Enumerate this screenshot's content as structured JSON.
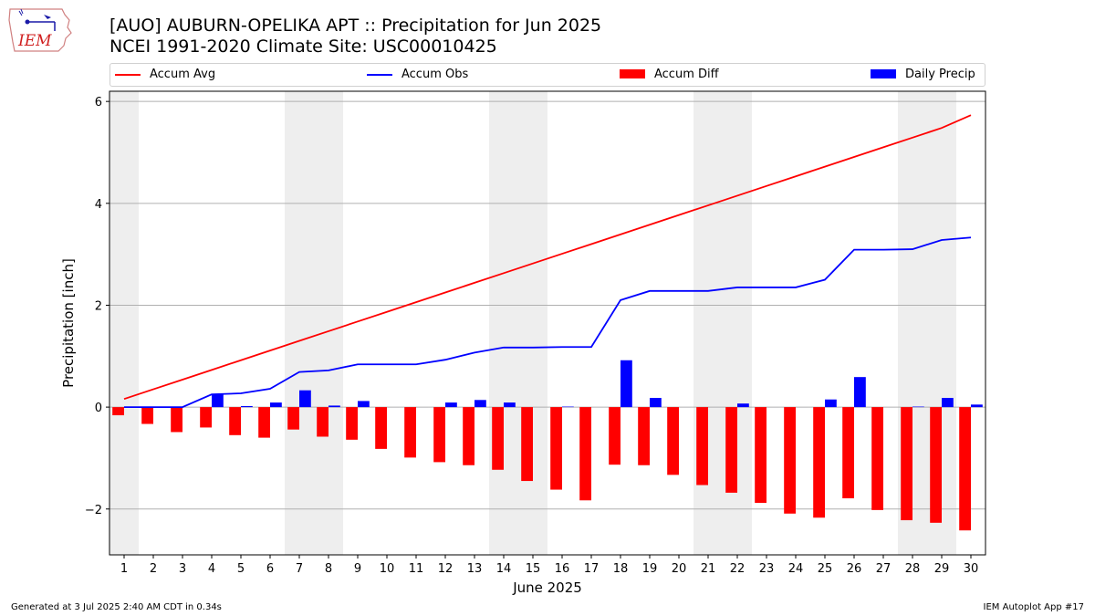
{
  "header": {
    "title": "[AUO] AUBURN-OPELIKA APT :: Precipitation for Jun 2025",
    "subtitle": "NCEI 1991-2020 Climate Site: USC00010425",
    "logo_text": "IEM"
  },
  "legend": {
    "items": [
      {
        "label": "Accum Avg",
        "color": "#ff0000",
        "kind": "line"
      },
      {
        "label": "Accum Obs",
        "color": "#0000ff",
        "kind": "line"
      },
      {
        "label": "Accum Diff",
        "color": "#ff0000",
        "kind": "box"
      },
      {
        "label": "Daily Precip",
        "color": "#0000ff",
        "kind": "box"
      }
    ]
  },
  "footer": {
    "left": "Generated at 3 Jul 2025 2:40 AM CDT in 0.34s",
    "right": "IEM Autoplot App #17"
  },
  "chart_data": {
    "type": "bar",
    "xlabel": "June 2025",
    "ylabel": "Precipitation [inch]",
    "xlim": [
      0.5,
      30.5
    ],
    "ylim": [
      -2.9,
      6.2
    ],
    "yticks": [
      -2,
      0,
      2,
      4,
      6
    ],
    "grid": "y",
    "legend_position": "top",
    "weekend_shading": [
      [
        0.5,
        1.5
      ],
      [
        6.5,
        8.5
      ],
      [
        13.5,
        15.5
      ],
      [
        20.5,
        22.5
      ],
      [
        27.5,
        29.5
      ]
    ],
    "categories": [
      "1",
      "2",
      "3",
      "4",
      "5",
      "6",
      "7",
      "8",
      "9",
      "10",
      "11",
      "12",
      "13",
      "14",
      "15",
      "16",
      "17",
      "18",
      "19",
      "20",
      "21",
      "22",
      "23",
      "24",
      "25",
      "26",
      "27",
      "28",
      "29",
      "30"
    ],
    "series": [
      {
        "name": "Accum Avg",
        "kind": "line",
        "color": "#ff0000",
        "values": [
          0.16,
          0.35,
          0.54,
          0.73,
          0.92,
          1.11,
          1.3,
          1.49,
          1.68,
          1.87,
          2.06,
          2.25,
          2.44,
          2.63,
          2.82,
          3.01,
          3.2,
          3.39,
          3.58,
          3.77,
          3.96,
          4.15,
          4.34,
          4.53,
          4.72,
          4.91,
          5.1,
          5.29,
          5.48,
          5.73
        ]
      },
      {
        "name": "Accum Obs",
        "kind": "line",
        "color": "#0000ff",
        "values": [
          0.0,
          0.0,
          0.0,
          0.25,
          0.27,
          0.36,
          0.69,
          0.72,
          0.84,
          0.84,
          0.84,
          0.93,
          1.07,
          1.17,
          1.17,
          1.18,
          1.18,
          2.1,
          2.28,
          2.28,
          2.28,
          2.35,
          2.35,
          2.35,
          2.5,
          3.09,
          3.09,
          3.1,
          3.28,
          3.33
        ]
      },
      {
        "name": "Accum Diff",
        "kind": "bar",
        "color": "#ff0000",
        "values": [
          -0.16,
          -0.33,
          -0.49,
          -0.4,
          -0.55,
          -0.6,
          -0.44,
          -0.58,
          -0.64,
          -0.82,
          -0.99,
          -1.08,
          -1.14,
          -1.23,
          -1.45,
          -1.62,
          -1.83,
          -1.13,
          -1.14,
          -1.33,
          -1.53,
          -1.68,
          -1.88,
          -2.09,
          -2.17,
          -1.79,
          -2.02,
          -2.22,
          -2.27,
          -2.42
        ]
      },
      {
        "name": "Daily Precip",
        "kind": "bar",
        "color": "#0000ff",
        "values": [
          0.01,
          0.0,
          0.0,
          0.25,
          0.02,
          0.09,
          0.33,
          0.03,
          0.12,
          0.0,
          0.0,
          0.09,
          0.14,
          0.09,
          0.0,
          0.01,
          0.0,
          0.92,
          0.18,
          0.0,
          0.0,
          0.07,
          0.0,
          0.0,
          0.15,
          0.59,
          0.0,
          0.01,
          0.18,
          0.05
        ]
      }
    ]
  }
}
